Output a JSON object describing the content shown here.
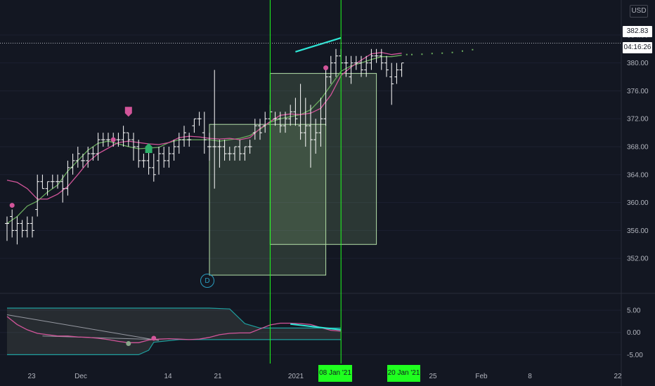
{
  "currency": "USD",
  "last_price": "382.83",
  "countdown": "04:16:26",
  "event_marker": "D",
  "colors": {
    "background": "#131722",
    "bar": "#ffffff",
    "ma_fast": "#d2559a",
    "ma_slow": "#6aab5e",
    "zone_fill": "#9acd8c",
    "zone_stroke": "#b4dfa8",
    "cursor_line": "#1fff1f",
    "trend_line": "#2ee6d6",
    "osc_line": "#d2559a",
    "osc_band": "#1e9e9e",
    "marker_pink": "#d2559a",
    "marker_green": "#2eb06a"
  },
  "cursor_labels": [
    "08 Jan '21",
    "20 Jan '21"
  ],
  "chart_data": [
    {
      "type": "line",
      "ylim": [
        349,
        386
      ],
      "yticks": [
        352.0,
        356.0,
        360.0,
        364.0,
        368.0,
        372.0,
        376.0,
        380.0,
        384.0
      ],
      "ytick_labels": [
        "352.00",
        "356.00",
        "360.00",
        "364.00",
        "368.00",
        "372.00",
        "376.00",
        "380.00",
        "384.00"
      ],
      "xtick_labels": [
        "23",
        "Dec",
        "14",
        "21",
        "2021",
        "25",
        "Feb",
        "8",
        "22"
      ],
      "bars": [
        [
          357,
          358,
          354.5,
          357
        ],
        [
          358,
          359,
          355,
          356
        ],
        [
          356,
          358,
          354,
          357
        ],
        [
          357,
          357.5,
          355,
          356
        ],
        [
          356,
          358,
          355,
          357
        ],
        [
          357,
          358,
          355,
          356
        ],
        [
          359,
          364,
          358,
          363
        ],
        [
          363,
          364,
          362,
          362
        ],
        [
          362,
          363,
          361,
          363
        ],
        [
          363,
          364,
          362,
          363
        ],
        [
          363,
          364,
          362,
          363
        ],
        [
          363,
          364,
          360,
          362
        ],
        [
          362,
          366,
          361,
          365
        ],
        [
          365,
          367,
          364,
          366
        ],
        [
          366,
          368,
          365,
          367
        ],
        [
          366,
          367,
          365,
          366
        ],
        [
          366,
          368,
          365,
          367
        ],
        [
          367,
          368,
          366,
          367
        ],
        [
          367,
          370,
          366,
          369
        ],
        [
          369,
          370,
          368,
          369
        ],
        [
          369,
          370,
          368,
          369
        ],
        [
          369,
          370,
          368,
          369
        ],
        [
          369,
          370,
          368,
          369
        ],
        [
          369,
          371,
          368,
          370
        ],
        [
          370,
          370,
          368,
          369
        ],
        [
          369,
          370,
          366,
          368
        ],
        [
          368,
          369,
          365,
          366
        ],
        [
          366,
          367,
          365,
          366
        ],
        [
          366,
          368,
          364,
          365
        ],
        [
          365,
          367,
          363,
          364
        ],
        [
          366,
          368,
          364,
          367
        ],
        [
          367,
          368,
          365,
          366
        ],
        [
          366,
          368,
          365,
          367
        ],
        [
          367,
          369,
          366,
          368
        ],
        [
          368,
          370,
          367,
          369
        ],
        [
          369,
          371,
          368,
          370
        ],
        [
          369,
          370,
          368,
          369
        ],
        [
          371,
          372,
          370,
          372
        ],
        [
          372,
          373,
          371,
          372
        ],
        [
          370,
          373,
          367,
          369
        ],
        [
          368,
          370,
          366,
          368
        ],
        [
          368,
          379,
          362,
          368
        ],
        [
          368,
          369,
          365,
          368
        ],
        [
          368,
          369,
          366,
          367
        ],
        [
          367,
          368,
          366,
          367
        ],
        [
          367,
          368,
          366,
          368
        ],
        [
          368,
          369,
          366,
          367
        ],
        [
          367,
          368,
          366,
          368
        ],
        [
          368,
          369,
          367,
          368
        ],
        [
          370,
          372,
          369,
          371
        ],
        [
          371,
          372,
          369,
          370
        ],
        [
          371,
          373,
          370,
          372
        ],
        [
          372,
          374,
          371,
          373
        ],
        [
          372,
          373,
          371,
          372
        ],
        [
          372,
          373,
          370,
          371
        ],
        [
          371,
          373,
          370,
          372
        ],
        [
          372,
          374,
          371,
          373
        ],
        [
          373,
          375,
          371,
          372
        ],
        [
          371,
          377,
          369,
          370
        ],
        [
          370,
          375,
          368,
          371
        ],
        [
          371,
          374,
          365,
          369
        ],
        [
          369,
          372,
          367,
          370
        ],
        [
          370,
          375,
          368,
          372
        ],
        [
          372,
          379,
          371,
          378
        ],
        [
          378,
          381,
          377,
          380
        ],
        [
          380,
          382,
          378,
          381
        ],
        [
          381,
          382,
          379,
          380
        ],
        [
          380,
          381,
          378,
          380
        ],
        [
          378,
          381,
          377,
          380
        ],
        [
          380,
          381,
          379,
          380
        ],
        [
          380,
          381,
          378,
          379
        ],
        [
          379,
          381,
          378,
          380
        ],
        [
          380,
          382,
          379,
          381
        ],
        [
          381,
          382,
          380,
          381
        ],
        [
          381,
          382,
          379,
          380
        ],
        [
          380,
          381,
          378,
          379
        ],
        [
          378,
          380,
          374,
          377
        ],
        [
          378,
          380,
          377,
          379
        ],
        [
          379,
          380,
          378,
          380
        ]
      ],
      "ma_fast": [
        [
          0,
          363.2
        ],
        [
          2,
          362.9
        ],
        [
          4,
          362.0
        ],
        [
          6,
          360.5
        ],
        [
          8,
          360.5
        ],
        [
          10,
          361.2
        ],
        [
          12,
          362.3
        ],
        [
          14,
          364.0
        ],
        [
          16,
          365.8
        ],
        [
          18,
          367.0
        ],
        [
          20,
          367.8
        ],
        [
          22,
          368.6
        ],
        [
          24,
          368.8
        ],
        [
          26,
          368.6
        ],
        [
          28,
          368.4
        ],
        [
          30,
          368.3
        ],
        [
          32,
          368.6
        ],
        [
          34,
          369.3
        ],
        [
          36,
          369.5
        ],
        [
          38,
          369.4
        ],
        [
          40,
          369.2
        ],
        [
          42,
          369.1
        ],
        [
          44,
          369.2
        ],
        [
          46,
          369.0
        ],
        [
          48,
          369.3
        ],
        [
          50,
          370.6
        ],
        [
          52,
          371.6
        ],
        [
          54,
          372.5
        ],
        [
          56,
          372.7
        ],
        [
          58,
          372.6
        ],
        [
          60,
          372.8
        ],
        [
          62,
          373.5
        ],
        [
          64,
          375.4
        ],
        [
          66,
          378.2
        ],
        [
          68,
          379.4
        ],
        [
          70,
          380.4
        ],
        [
          72,
          381.3
        ],
        [
          74,
          381.5
        ],
        [
          76,
          381.2
        ],
        [
          78,
          381.4
        ]
      ],
      "ma_slow": [
        [
          0,
          357.0
        ],
        [
          2,
          358.0
        ],
        [
          4,
          359.5
        ],
        [
          6,
          360.2
        ],
        [
          8,
          361.5
        ],
        [
          10,
          362.5
        ],
        [
          12,
          364.5
        ],
        [
          14,
          366.0
        ],
        [
          16,
          367.5
        ],
        [
          18,
          368.5
        ],
        [
          20,
          368.8
        ],
        [
          22,
          368.4
        ],
        [
          24,
          368.0
        ],
        [
          26,
          367.7
        ],
        [
          28,
          367.8
        ],
        [
          30,
          367.9
        ],
        [
          32,
          368.6
        ],
        [
          34,
          369.0
        ],
        [
          36,
          369.0
        ],
        [
          38,
          369.0
        ],
        [
          40,
          369.0
        ],
        [
          42,
          368.8
        ],
        [
          44,
          369.0
        ],
        [
          46,
          369.2
        ],
        [
          48,
          369.6
        ],
        [
          50,
          370.5
        ],
        [
          52,
          371.5
        ],
        [
          54,
          372.0
        ],
        [
          56,
          372.3
        ],
        [
          58,
          372.6
        ],
        [
          60,
          373.3
        ],
        [
          62,
          374.8
        ],
        [
          64,
          376.8
        ],
        [
          66,
          378.8
        ],
        [
          68,
          379.6
        ],
        [
          70,
          380.0
        ],
        [
          72,
          380.5
        ],
        [
          74,
          380.9
        ],
        [
          76,
          380.9
        ],
        [
          78,
          381.1
        ]
      ],
      "projection": [
        [
          79,
          381.2
        ],
        [
          80,
          381.2
        ],
        [
          82,
          381.25
        ],
        [
          84,
          381.35
        ],
        [
          86,
          381.4
        ],
        [
          88,
          381.5
        ],
        [
          90,
          381.7
        ],
        [
          92,
          381.9
        ]
      ],
      "zones": [
        {
          "x0": 40,
          "x1": 63,
          "y_top": 371.2,
          "y_bottom": 349.6
        },
        {
          "x0": 52,
          "x1": 73,
          "y_top": 378.5,
          "y_bottom": 354.0
        }
      ],
      "trend_line": [
        [
          57,
          381.6
        ],
        [
          66,
          383.6
        ]
      ],
      "vlines": [
        52,
        66
      ],
      "markers": [
        {
          "kind": "dot",
          "x": 1,
          "y": 359.6
        },
        {
          "kind": "dot",
          "x": 21,
          "y": 369.0
        },
        {
          "kind": "down-flag",
          "x": 24,
          "y": 373.0
        },
        {
          "kind": "up-flag",
          "x": 28,
          "y": 367.8
        },
        {
          "kind": "dot",
          "x": 63,
          "y": 379.3
        }
      ]
    },
    {
      "type": "line",
      "ylim": [
        -7,
        8.5
      ],
      "yticks": [
        5.0,
        0.0,
        -5.0
      ],
      "ytick_labels": [
        "5.00",
        "0.00",
        "-5.00"
      ],
      "osc": [
        [
          0,
          3.6
        ],
        [
          2,
          1.8
        ],
        [
          4,
          0.6
        ],
        [
          6,
          -0.2
        ],
        [
          8,
          -0.5
        ],
        [
          10,
          -0.8
        ],
        [
          12,
          -0.8
        ],
        [
          14,
          -1.0
        ],
        [
          16,
          -1.1
        ],
        [
          18,
          -1.3
        ],
        [
          20,
          -1.6
        ],
        [
          22,
          -2.0
        ],
        [
          24,
          -2.3
        ],
        [
          26,
          -2.3
        ],
        [
          28,
          -1.7
        ],
        [
          30,
          -1.5
        ],
        [
          32,
          -1.4
        ],
        [
          34,
          -1.5
        ],
        [
          36,
          -1.6
        ],
        [
          38,
          -1.5
        ],
        [
          40,
          -1.1
        ],
        [
          42,
          -0.5
        ],
        [
          44,
          -0.2
        ],
        [
          46,
          -0.1
        ],
        [
          48,
          -0.1
        ],
        [
          50,
          0.8
        ],
        [
          52,
          1.7
        ],
        [
          54,
          2.1
        ],
        [
          56,
          2.1
        ],
        [
          58,
          2.0
        ],
        [
          60,
          1.8
        ],
        [
          62,
          1.1
        ],
        [
          64,
          0.5
        ],
        [
          66,
          0.3
        ]
      ],
      "band_upper": [
        [
          0,
          5.5
        ],
        [
          40,
          5.5
        ],
        [
          44,
          5.3
        ],
        [
          47,
          2.0
        ],
        [
          50,
          1.0
        ],
        [
          66,
          1.0
        ]
      ],
      "band_lower": [
        [
          0,
          -5.0
        ],
        [
          26,
          -5.0
        ],
        [
          28,
          -4.0
        ],
        [
          29,
          -2.2
        ],
        [
          34,
          -1.6
        ],
        [
          66,
          -1.6
        ]
      ],
      "regression": [
        [
          0,
          4.0
        ],
        [
          30,
          -1.8
        ]
      ],
      "regression2": [
        [
          7,
          -0.8
        ],
        [
          30,
          -1.6
        ]
      ],
      "trend_line": [
        [
          56,
          1.9
        ],
        [
          66,
          0.6
        ]
      ],
      "markers": [
        {
          "kind": "dot",
          "color": "green",
          "x": 24,
          "y": -2.5
        },
        {
          "kind": "dot",
          "color": "pink",
          "x": 29,
          "y": -1.3
        }
      ]
    }
  ]
}
